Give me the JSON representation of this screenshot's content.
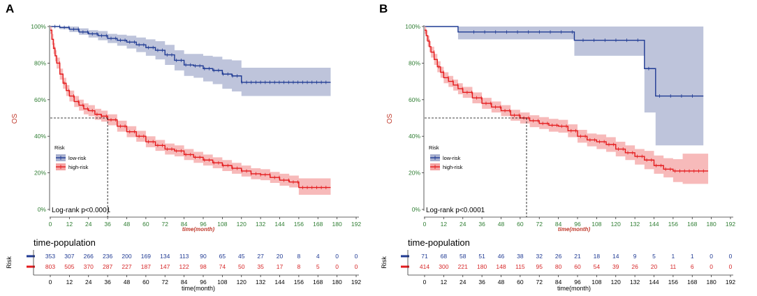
{
  "colors": {
    "low_risk": "#1f3a93",
    "high_risk": "#e41a1c",
    "low_band": "#a8b0cf",
    "high_band": "#f4a3a3",
    "tick_green": "#2e7d32",
    "label_red": "#c0392b"
  },
  "chart_data": [
    {
      "panel": "A",
      "type": "line",
      "ylabel": "OS",
      "xlabel": "time(month)",
      "legend_title": "Risk",
      "legend_low": "low-risk",
      "legend_high": "high-risk",
      "pvalue": "Log-rank  p<0.0001",
      "xlim": [
        0,
        192
      ],
      "ylim": [
        0,
        100
      ],
      "xticks": [
        0,
        12,
        24,
        36,
        48,
        60,
        72,
        84,
        96,
        108,
        120,
        132,
        144,
        156,
        168,
        180,
        192
      ],
      "yticks": [
        "0%",
        "20%",
        "40%",
        "60%",
        "80%",
        "100%"
      ],
      "median_time": 36,
      "series": [
        {
          "name": "low-risk",
          "x": [
            0,
            6,
            12,
            18,
            24,
            30,
            36,
            42,
            48,
            54,
            60,
            66,
            72,
            78,
            84,
            90,
            96,
            102,
            108,
            114,
            120,
            126,
            132,
            140,
            150,
            160,
            170,
            176
          ],
          "y": [
            100,
            99.5,
            98.5,
            97,
            96,
            95,
            93.5,
            92.5,
            91.5,
            90,
            88.5,
            87,
            84.5,
            81.5,
            79,
            78.5,
            77,
            76,
            74,
            73,
            69.5,
            69.5,
            69.5,
            69.5,
            69.5,
            69.5,
            69.5,
            69.5
          ],
          "lower": [
            100,
            98.5,
            97,
            95.5,
            94,
            92.5,
            91,
            89.5,
            88,
            86,
            84,
            82,
            79,
            76,
            73,
            72,
            70,
            68.5,
            66,
            64.5,
            62,
            62,
            62,
            62,
            62,
            62,
            62,
            62
          ],
          "upper": [
            100,
            100,
            100,
            99,
            98,
            97.5,
            96,
            95.5,
            95,
            94,
            93,
            92,
            90,
            87,
            85,
            85,
            84,
            83.5,
            82,
            81.5,
            77.5,
            77.5,
            77.5,
            77.5,
            77.5,
            77.5,
            77.5,
            77.5
          ]
        },
        {
          "name": "high-risk",
          "x": [
            0,
            1,
            2,
            3,
            4,
            6,
            8,
            10,
            12,
            15,
            18,
            21,
            24,
            28,
            32,
            36,
            42,
            48,
            54,
            60,
            66,
            72,
            78,
            84,
            90,
            96,
            102,
            108,
            114,
            120,
            126,
            132,
            138,
            144,
            150,
            156,
            162,
            168,
            176
          ],
          "y": [
            98,
            93,
            88,
            84,
            80,
            74,
            69,
            65,
            62,
            59,
            57,
            55,
            54,
            52,
            51,
            49,
            45.5,
            42.5,
            40,
            37,
            35,
            33,
            32,
            30,
            28.5,
            27,
            25.5,
            24,
            22.5,
            21,
            19.5,
            19,
            17.5,
            16,
            15,
            12,
            12,
            12,
            12
          ],
          "lower": [
            96,
            90,
            85,
            81,
            77,
            71,
            66,
            62,
            59,
            56,
            54,
            52,
            51,
            49,
            48,
            46,
            42.5,
            39.5,
            37,
            34,
            32,
            30,
            29,
            27,
            25.5,
            24,
            22.5,
            21,
            19.5,
            18,
            16.5,
            16,
            14.5,
            13,
            12,
            8,
            8,
            8,
            8
          ],
          "upper": [
            100,
            96,
            91,
            87,
            83,
            77,
            72,
            68,
            65,
            62,
            60,
            58,
            57,
            55,
            54,
            52,
            48.5,
            45.5,
            43,
            40,
            38,
            36,
            35,
            33,
            31.5,
            30,
            28.5,
            27,
            25.5,
            24,
            22.5,
            22,
            20.5,
            19.5,
            18.5,
            17,
            17,
            17,
            17
          ]
        }
      ],
      "risk_table": {
        "title": "time-population",
        "axis_label": "Risk",
        "x_label": "time(month)",
        "times": [
          0,
          12,
          24,
          36,
          48,
          60,
          72,
          84,
          96,
          108,
          120,
          132,
          144,
          156,
          168,
          180,
          192
        ],
        "low": [
          "353",
          "307",
          "266",
          "236",
          "200",
          "169",
          "134",
          "113",
          "90",
          "65",
          "45",
          "27",
          "20",
          "8",
          "4",
          "0",
          "0"
        ],
        "high": [
          "803",
          "505",
          "370",
          "287",
          "227",
          "187",
          "147",
          "122",
          "98",
          "74",
          "50",
          "35",
          "17",
          "8",
          "5",
          "0",
          "0"
        ]
      }
    },
    {
      "panel": "B",
      "type": "line",
      "ylabel": "OS",
      "xlabel": "time(month)",
      "legend_title": "Risk",
      "legend_low": "low-risk",
      "legend_high": "high-risk",
      "pvalue": "Log-rank  p<0.0001",
      "xlim": [
        0,
        192
      ],
      "ylim": [
        0,
        100
      ],
      "xticks": [
        0,
        12,
        24,
        36,
        48,
        60,
        72,
        84,
        96,
        108,
        120,
        132,
        144,
        156,
        168,
        180,
        192
      ],
      "yticks": [
        "0%",
        "20%",
        "40%",
        "60%",
        "80%",
        "100%"
      ],
      "median_time": 64,
      "series": [
        {
          "name": "low-risk",
          "step": true,
          "x": [
            0,
            21,
            21,
            94,
            94,
            138,
            138,
            145,
            145,
            175
          ],
          "y": [
            100,
            100,
            97,
            97,
            92.5,
            92.5,
            77,
            77,
            62,
            62
          ],
          "lower": [
            100,
            100,
            93,
            93,
            84,
            84,
            53,
            53,
            35,
            35
          ],
          "upper": [
            100,
            100,
            100,
            100,
            100,
            100,
            100,
            100,
            100,
            100
          ]
        },
        {
          "name": "high-risk",
          "x": [
            0,
            1,
            2,
            3,
            4,
            6,
            8,
            10,
            12,
            15,
            18,
            21,
            24,
            30,
            36,
            42,
            48,
            54,
            60,
            66,
            72,
            78,
            84,
            90,
            96,
            102,
            108,
            114,
            120,
            126,
            132,
            138,
            144,
            150,
            156,
            162,
            168,
            178
          ],
          "y": [
            98,
            95,
            92,
            89,
            86,
            82,
            78,
            75,
            72,
            70,
            68,
            66,
            64,
            61,
            58,
            56,
            54,
            51.5,
            50,
            48.5,
            47,
            46,
            45.5,
            43,
            40,
            38,
            37,
            35.5,
            33,
            31,
            29,
            27,
            24,
            22,
            21,
            21,
            21,
            21
          ],
          "lower": [
            96,
            92,
            89,
            86,
            83,
            79,
            75,
            72,
            69,
            67,
            65,
            63,
            61,
            58,
            55,
            53,
            51,
            48.5,
            47,
            45,
            44,
            42.5,
            42,
            39.5,
            36.5,
            34.5,
            33,
            31.5,
            29,
            27,
            24.5,
            22,
            19.5,
            17.5,
            15,
            14,
            14,
            14
          ],
          "upper": [
            100,
            98,
            95,
            92,
            89,
            85,
            81,
            78,
            75,
            73,
            71,
            69,
            67,
            64,
            61,
            59,
            57,
            54.5,
            53,
            51.5,
            50.5,
            49.5,
            49,
            46.5,
            43.5,
            41.5,
            41,
            39.5,
            37,
            35,
            33,
            32,
            29.5,
            28,
            27.5,
            30.5,
            30.5,
            30.5
          ]
        }
      ],
      "risk_table": {
        "title": "time-population",
        "axis_label": "Risk",
        "x_label": "time(month)",
        "times": [
          0,
          12,
          24,
          36,
          48,
          60,
          72,
          84,
          96,
          108,
          120,
          132,
          144,
          156,
          168,
          180,
          192
        ],
        "low": [
          "71",
          "68",
          "58",
          "51",
          "46",
          "38",
          "32",
          "26",
          "21",
          "18",
          "14",
          "9",
          "5",
          "1",
          "1",
          "0",
          "0"
        ],
        "high": [
          "414",
          "300",
          "221",
          "180",
          "148",
          "115",
          "95",
          "80",
          "60",
          "54",
          "39",
          "26",
          "20",
          "11",
          "6",
          "0",
          "0"
        ]
      }
    }
  ]
}
